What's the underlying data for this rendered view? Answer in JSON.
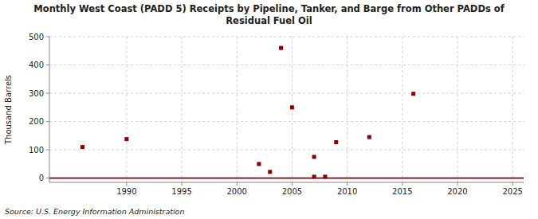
{
  "chart_data": {
    "type": "scatter",
    "title": "Monthly West Coast (PADD 5) Receipts by Pipeline, Tanker, and Barge from Other PADDs of",
    "subtitle": "Residual Fuel Oil",
    "y_label": "Thousand Barrels",
    "source": "Source: U.S. Energy Information Administration",
    "x": [
      1986,
      1990,
      2002,
      2003,
      2004,
      2005,
      2007,
      2007,
      2008,
      2009,
      2012,
      2016
    ],
    "values": [
      110,
      138,
      50,
      22,
      460,
      250,
      75,
      5,
      5,
      127,
      145,
      298
    ],
    "color": "#8b0000",
    "marker": "square",
    "xlim": [
      1983,
      2026
    ],
    "ylim": [
      -15,
      500
    ],
    "xticks": [
      1990,
      1995,
      2000,
      2005,
      2010,
      2015,
      2020,
      2025
    ],
    "yticks": [
      0,
      100,
      200,
      300,
      400,
      500
    ],
    "grid": true
  }
}
